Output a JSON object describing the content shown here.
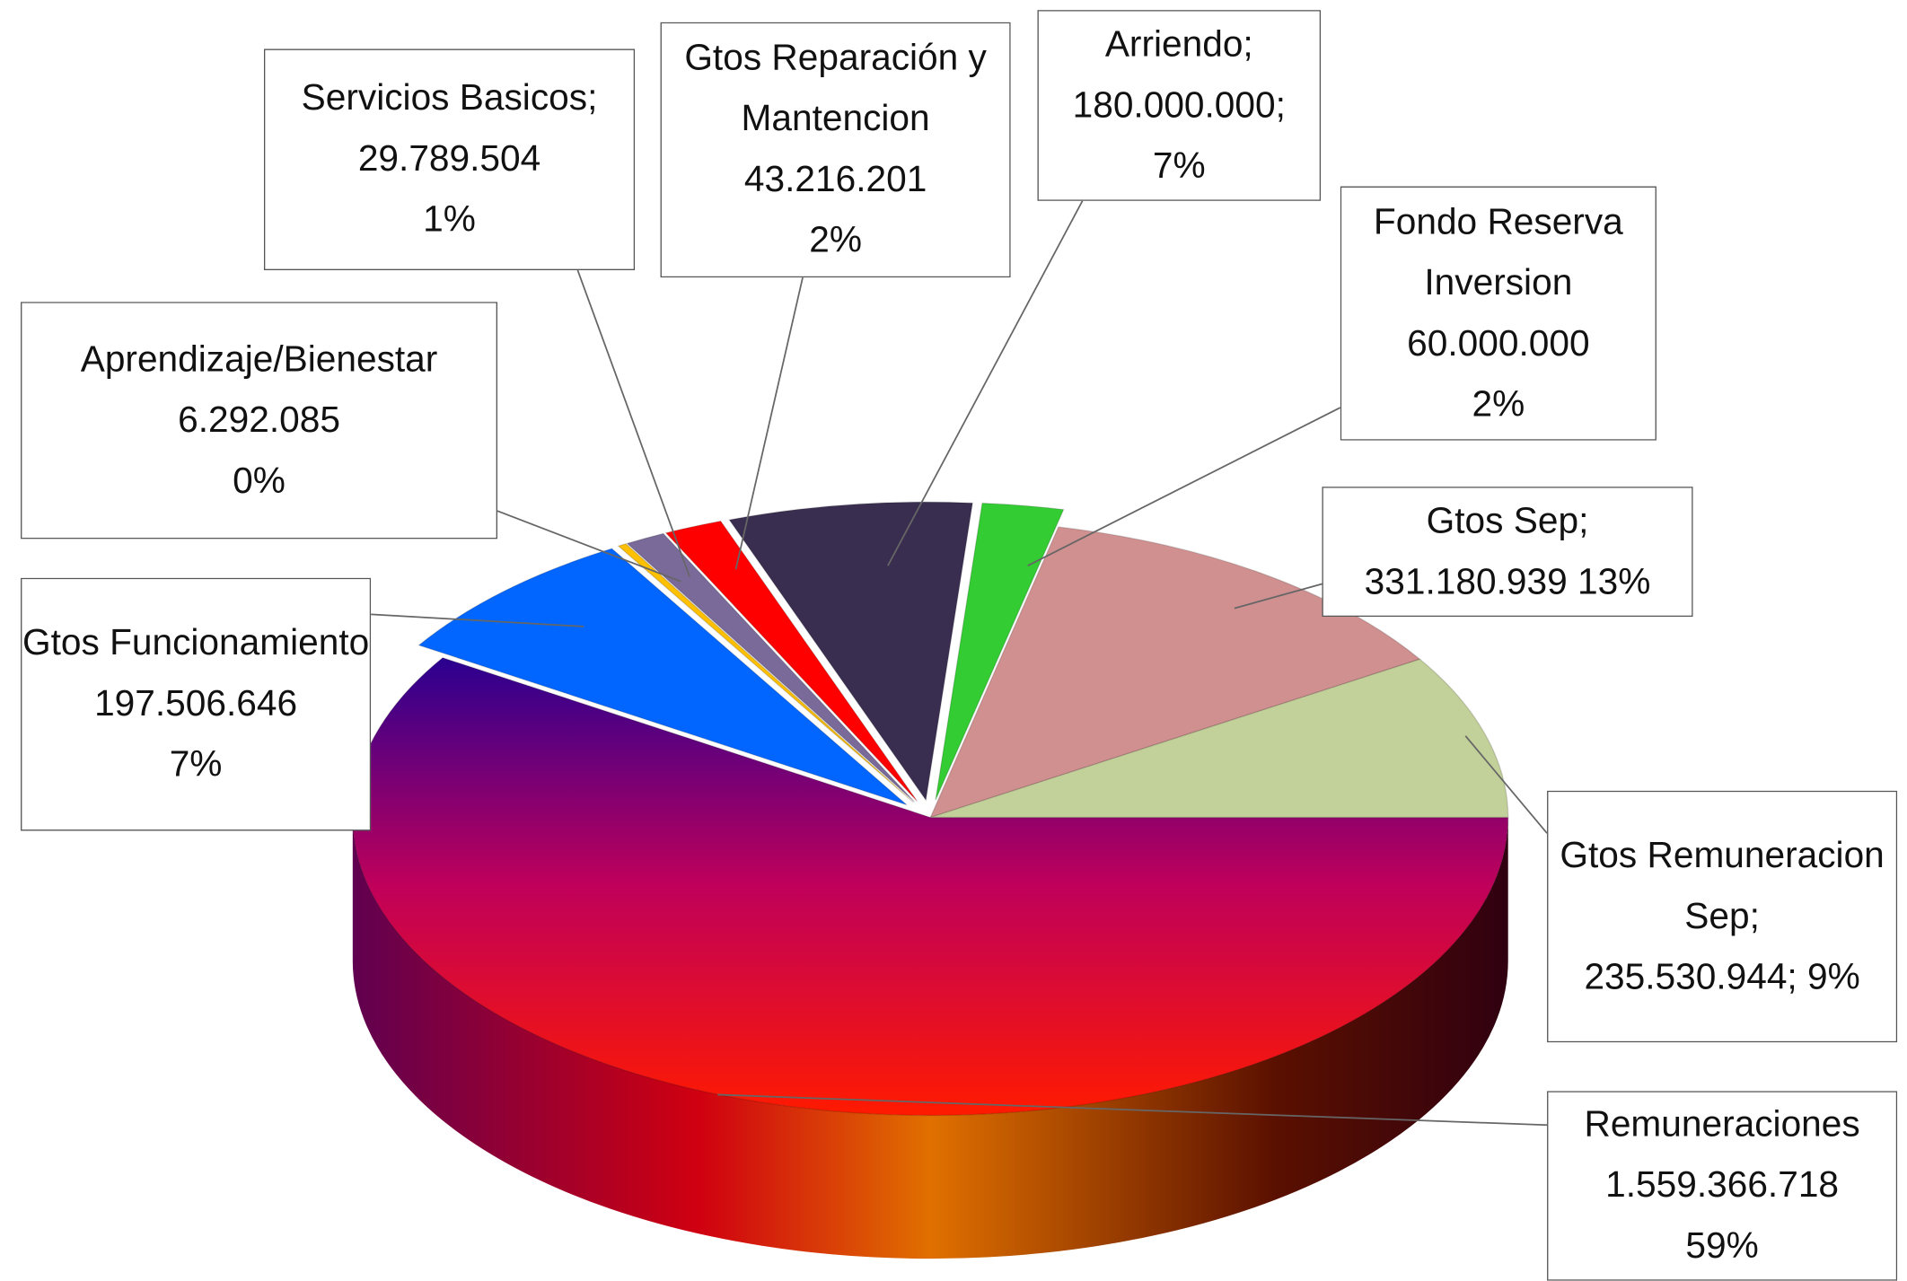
{
  "chart_data": {
    "type": "pie3d",
    "categories": [
      "Remuneraciones",
      "Gtos Funcionamiento",
      "Aprendizaje/Bienestar",
      "Servicios Basicos;",
      "Gtos Reparación y Mantencion",
      "Arriendo;",
      "Fondo Reserva Inversion",
      "Gtos Sep;",
      "Gtos Remuneracion Sep;"
    ],
    "values": [
      1559366718,
      197506646,
      6292085,
      29789504,
      43216201,
      180000000,
      60000000,
      331180939,
      235530944
    ],
    "value_labels": [
      "1.559.366.718",
      "197.506.646",
      "6.292.085",
      "29.789.504",
      "43.216.201",
      "180.000.000;",
      "60.000.000",
      "331.180.939",
      "235.530.944;"
    ],
    "percents": [
      59,
      7,
      0,
      1,
      2,
      7,
      2,
      13,
      9
    ],
    "percent_labels": [
      "59%",
      "7%",
      "0%",
      "1%",
      "2%",
      "7%",
      "2%",
      "13%",
      "9%"
    ],
    "colors": [
      "#c0005a",
      "#0066ff",
      "#ffc000",
      "#7a6a9a",
      "#ff0000",
      "#3a2e50",
      "#33cc33",
      "#d09090",
      "#c2d09a"
    ]
  }
}
